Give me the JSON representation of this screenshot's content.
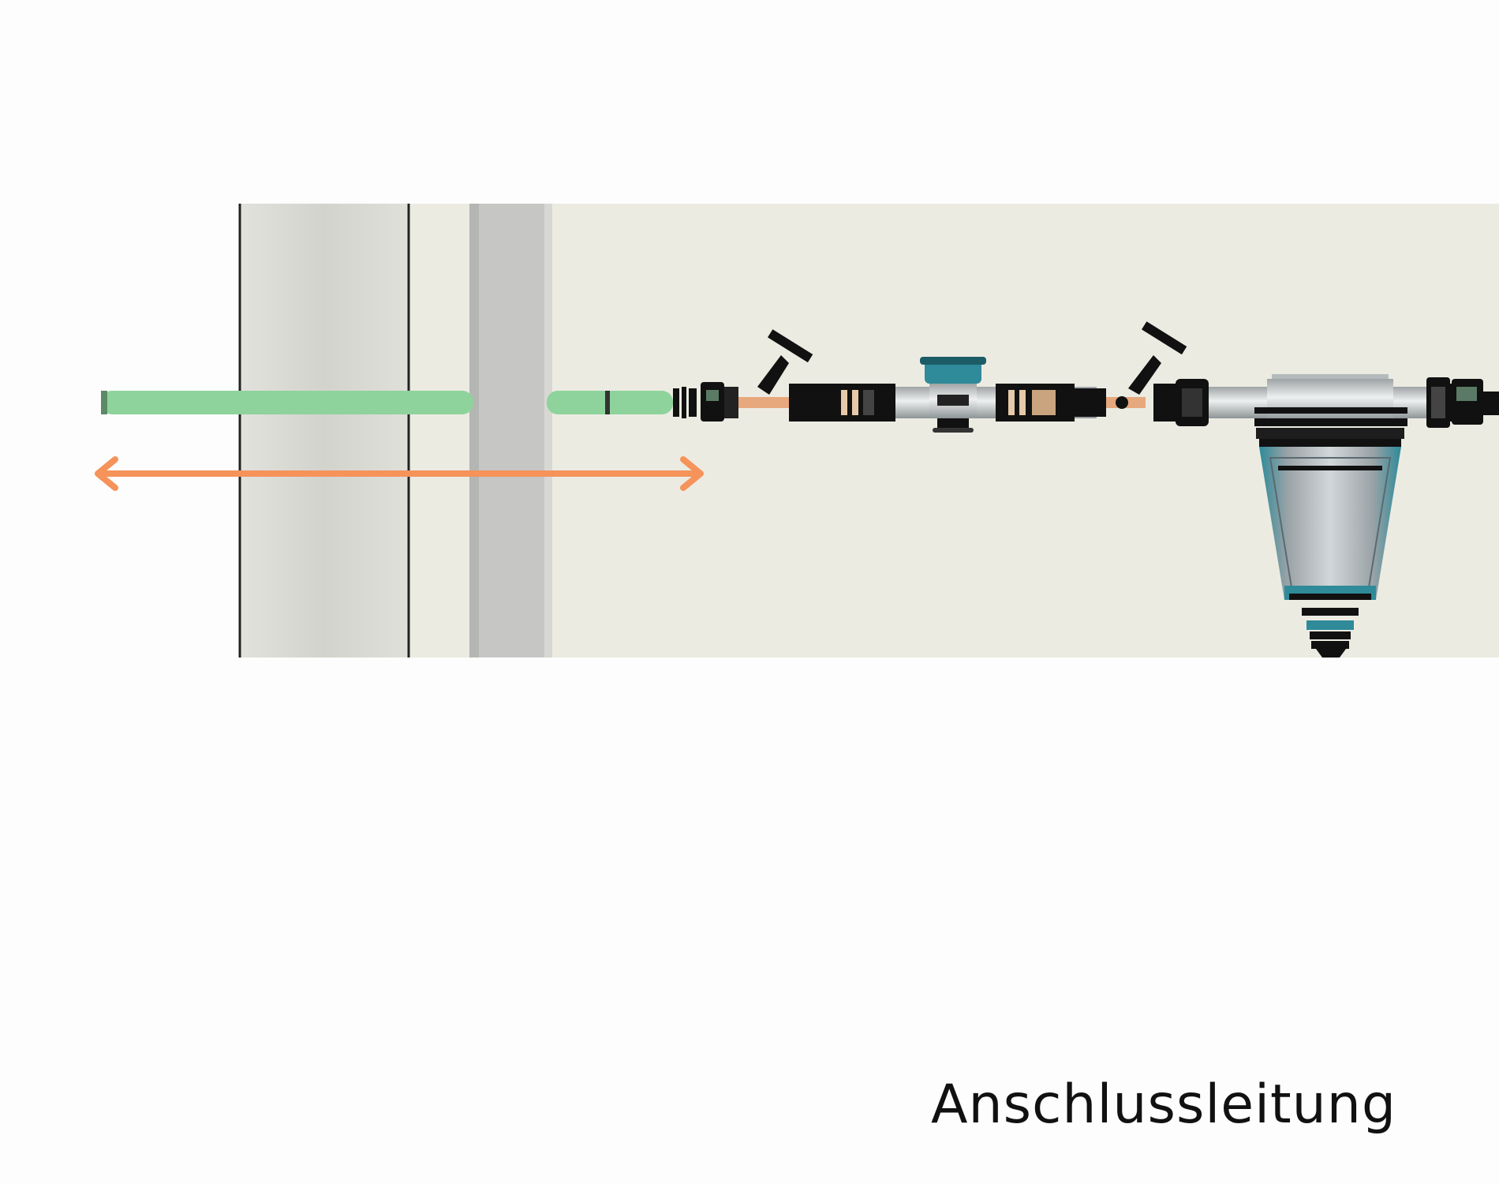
{
  "caption": "Anschlussleitung",
  "colors": {
    "background": "#fdfdfd",
    "scene_background": "#ecebe2",
    "wall": "#dcdcd6",
    "wall_shade": "#c8c8c4",
    "pipe_green": "#8ed39b",
    "pipe_green_dark": "#6fb27e",
    "arrow": "#f5935a",
    "fitting_dark": "#111111",
    "fitting_steel": "#c9cccc",
    "filter_teal": "#2f8a99",
    "filter_grey": "#aab2b6"
  },
  "icons": [
    "double-headed-arrow",
    "gate-valve-icon",
    "water-meter-icon",
    "filter-icon"
  ]
}
